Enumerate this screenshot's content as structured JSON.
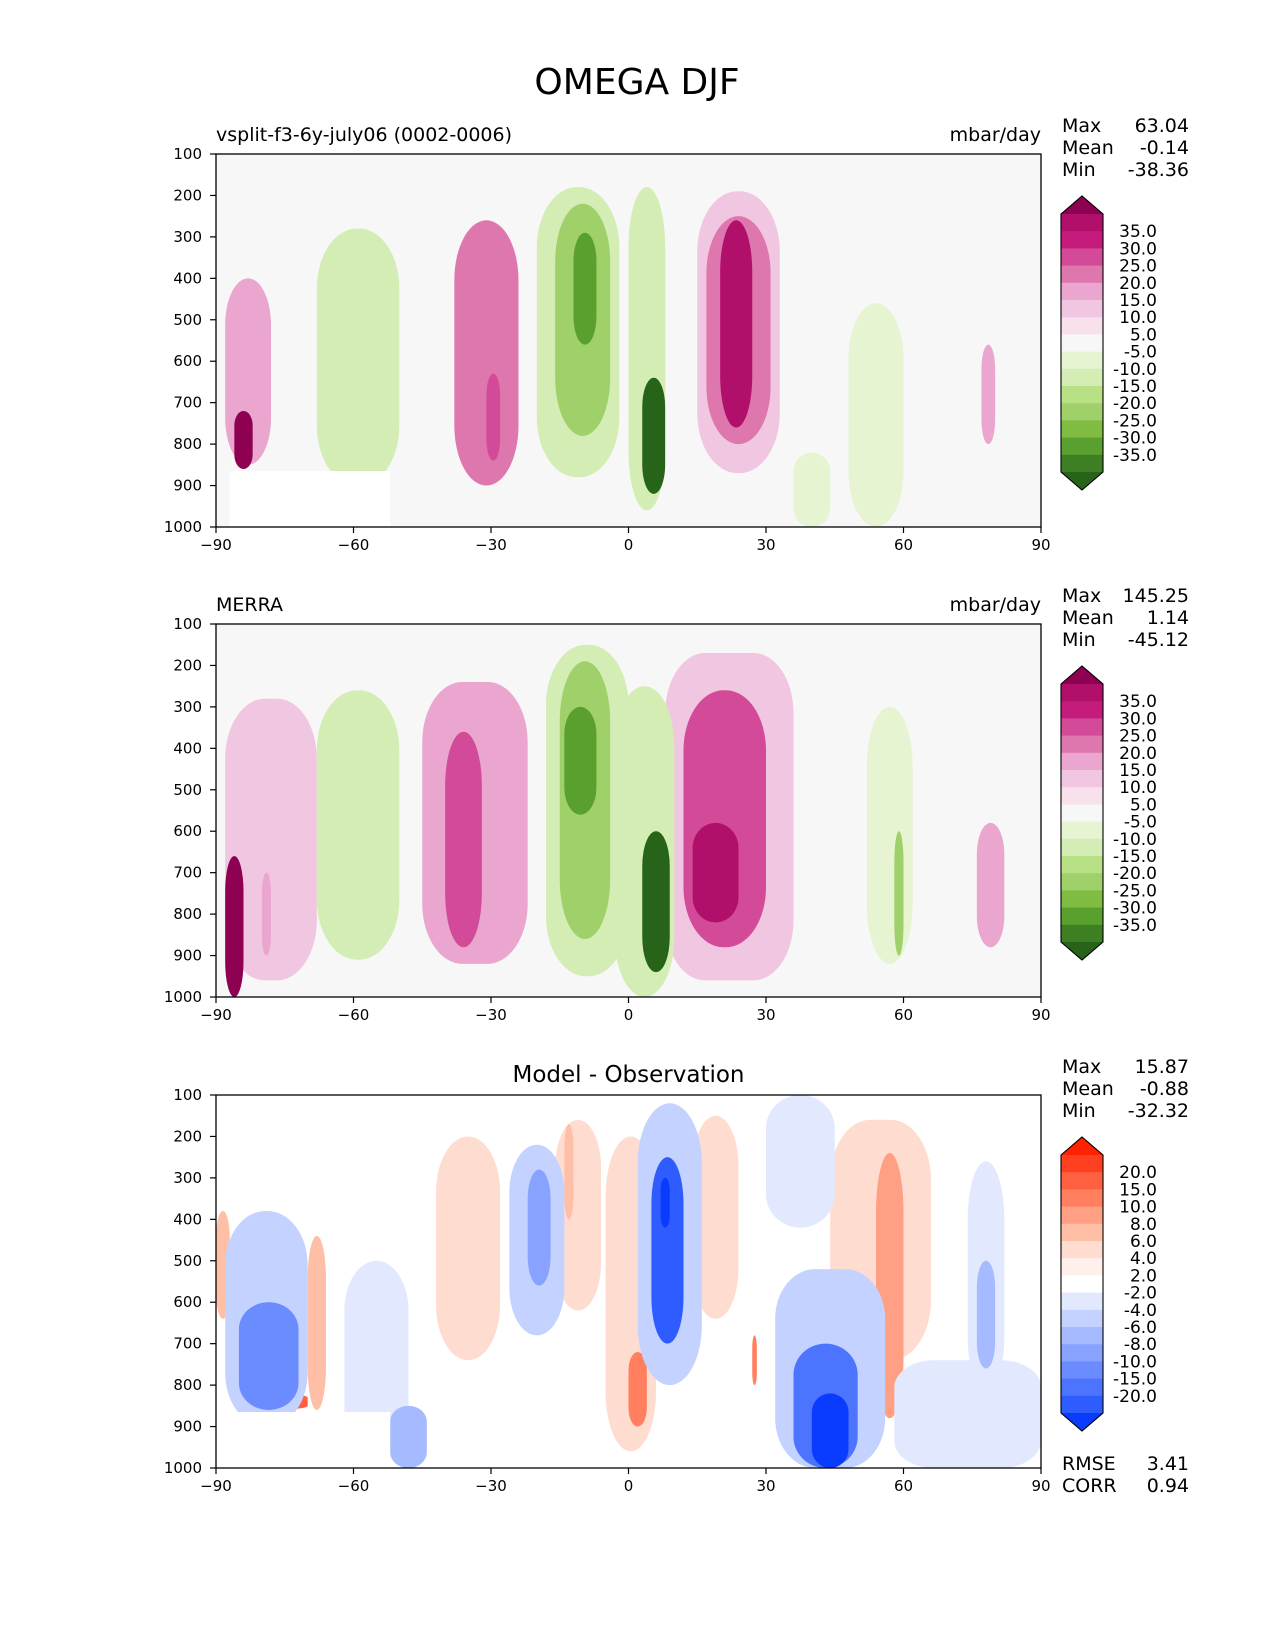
{
  "figure": {
    "title": "OMEGA DJF"
  },
  "chart_data": [
    {
      "type": "heatmap",
      "left_label": "vsplit-f3-6y-july06 (0002-0006)",
      "center_label": "",
      "units": "mbar/day",
      "x_ticks": [
        "−90",
        "−60",
        "−30",
        "0",
        "30",
        "60",
        "90"
      ],
      "y_ticks": [
        "100",
        "200",
        "300",
        "400",
        "500",
        "600",
        "700",
        "800",
        "900",
        "1000"
      ],
      "xlim": [
        -90,
        90
      ],
      "ylim": [
        1000,
        100
      ],
      "stats": [
        {
          "label": "Max",
          "value": "63.04"
        },
        {
          "label": "Mean",
          "value": "-0.14"
        },
        {
          "label": "Min",
          "value": "-38.36"
        }
      ],
      "extra_stats": [],
      "colorbar": {
        "labels": [
          "35.0",
          "30.0",
          "25.0",
          "20.0",
          "15.0",
          "10.0",
          "5.0",
          "-5.0",
          "-10.0",
          "-15.0",
          "-20.0",
          "-25.0",
          "-30.0",
          "-35.0"
        ],
        "colors": [
          "#8e0152",
          "#b0106a",
          "#c51b7d",
          "#d24a98",
          "#de77ae",
          "#eaa6cf",
          "#f1c6e1",
          "#f8e0ec",
          "#f7f7f7",
          "#e6f4d2",
          "#d3edb5",
          "#b8e186",
          "#9fd06a",
          "#7fbc41",
          "#5aa02e",
          "#3d7f22",
          "#276419"
        ]
      },
      "features": [
        {
          "kind": "pos",
          "level": 4,
          "lon": [
            -38,
            -24
          ],
          "p": [
            260,
            900
          ]
        },
        {
          "kind": "pos",
          "level": 5,
          "lon": [
            -31,
            -28
          ],
          "p": [
            630,
            840
          ]
        },
        {
          "kind": "pos",
          "level": 2,
          "lon": [
            15,
            33
          ],
          "p": [
            190,
            870
          ]
        },
        {
          "kind": "pos",
          "level": 4,
          "lon": [
            17,
            31
          ],
          "p": [
            250,
            800
          ]
        },
        {
          "kind": "pos",
          "level": 7,
          "lon": [
            20,
            27
          ],
          "p": [
            260,
            760
          ]
        },
        {
          "kind": "pos",
          "level": 3,
          "lon": [
            -88,
            -78
          ],
          "p": [
            400,
            850
          ]
        },
        {
          "kind": "pos",
          "level": 10,
          "lon": [
            -86,
            -82
          ],
          "p": [
            720,
            860
          ]
        },
        {
          "kind": "pos",
          "level": 3,
          "lon": [
            77,
            80
          ],
          "p": [
            560,
            800
          ]
        },
        {
          "kind": "neg",
          "level": 2,
          "lon": [
            -68,
            -50
          ],
          "p": [
            280,
            900
          ]
        },
        {
          "kind": "neg",
          "level": 2,
          "lon": [
            -20,
            -2
          ],
          "p": [
            180,
            880
          ]
        },
        {
          "kind": "neg",
          "level": 4,
          "lon": [
            -16,
            -4
          ],
          "p": [
            220,
            780
          ]
        },
        {
          "kind": "neg",
          "level": 6,
          "lon": [
            -12,
            -7
          ],
          "p": [
            290,
            560
          ]
        },
        {
          "kind": "neg",
          "level": 2,
          "lon": [
            0,
            8
          ],
          "p": [
            180,
            960
          ]
        },
        {
          "kind": "neg",
          "level": 8,
          "lon": [
            3,
            8
          ],
          "p": [
            640,
            920
          ]
        },
        {
          "kind": "neg",
          "level": 1,
          "lon": [
            48,
            60
          ],
          "p": [
            460,
            1000
          ]
        },
        {
          "kind": "neg",
          "level": 1,
          "lon": [
            36,
            44
          ],
          "p": [
            820,
            1000
          ]
        }
      ],
      "has_mask": true
    },
    {
      "type": "heatmap",
      "left_label": "MERRA",
      "center_label": "",
      "units": "mbar/day",
      "x_ticks": [
        "−90",
        "−60",
        "−30",
        "0",
        "30",
        "60",
        "90"
      ],
      "y_ticks": [
        "100",
        "200",
        "300",
        "400",
        "500",
        "600",
        "700",
        "800",
        "900",
        "1000"
      ],
      "xlim": [
        -90,
        90
      ],
      "ylim": [
        1000,
        100
      ],
      "stats": [
        {
          "label": "Max",
          "value": "145.25"
        },
        {
          "label": "Mean",
          "value": "1.14"
        },
        {
          "label": "Min",
          "value": "-45.12"
        }
      ],
      "extra_stats": [],
      "colorbar": {
        "labels": [
          "35.0",
          "30.0",
          "25.0",
          "20.0",
          "15.0",
          "10.0",
          "5.0",
          "-5.0",
          "-10.0",
          "-15.0",
          "-20.0",
          "-25.0",
          "-30.0",
          "-35.0"
        ],
        "colors": [
          "#8e0152",
          "#b0106a",
          "#c51b7d",
          "#d24a98",
          "#de77ae",
          "#eaa6cf",
          "#f1c6e1",
          "#f8e0ec",
          "#f7f7f7",
          "#e6f4d2",
          "#d3edb5",
          "#b8e186",
          "#9fd06a",
          "#7fbc41",
          "#5aa02e",
          "#3d7f22",
          "#276419"
        ]
      },
      "features": [
        {
          "kind": "pos",
          "level": 3,
          "lon": [
            -45,
            -22
          ],
          "p": [
            240,
            920
          ]
        },
        {
          "kind": "pos",
          "level": 5,
          "lon": [
            -40,
            -32
          ],
          "p": [
            360,
            880
          ]
        },
        {
          "kind": "pos",
          "level": 2,
          "lon": [
            8,
            36
          ],
          "p": [
            170,
            960
          ]
        },
        {
          "kind": "pos",
          "level": 5,
          "lon": [
            12,
            30
          ],
          "p": [
            260,
            880
          ]
        },
        {
          "kind": "pos",
          "level": 7,
          "lon": [
            14,
            24
          ],
          "p": [
            580,
            820
          ]
        },
        {
          "kind": "pos",
          "level": 2,
          "lon": [
            -88,
            -68
          ],
          "p": [
            280,
            960
          ]
        },
        {
          "kind": "pos",
          "level": 13,
          "lon": [
            -88,
            -84
          ],
          "p": [
            660,
            1000
          ]
        },
        {
          "kind": "pos",
          "level": 3,
          "lon": [
            -80,
            -78
          ],
          "p": [
            700,
            900
          ]
        },
        {
          "kind": "pos",
          "level": 3,
          "lon": [
            76,
            82
          ],
          "p": [
            580,
            880
          ]
        },
        {
          "kind": "neg",
          "level": 2,
          "lon": [
            -68,
            -50
          ],
          "p": [
            260,
            910
          ]
        },
        {
          "kind": "neg",
          "level": 2,
          "lon": [
            -18,
            0
          ],
          "p": [
            150,
            950
          ]
        },
        {
          "kind": "neg",
          "level": 4,
          "lon": [
            -15,
            -4
          ],
          "p": [
            190,
            860
          ]
        },
        {
          "kind": "neg",
          "level": 6,
          "lon": [
            -14,
            -7
          ],
          "p": [
            300,
            560
          ]
        },
        {
          "kind": "neg",
          "level": 2,
          "lon": [
            -3,
            10
          ],
          "p": [
            250,
            1000
          ]
        },
        {
          "kind": "neg",
          "level": 8,
          "lon": [
            3,
            9
          ],
          "p": [
            600,
            940
          ]
        },
        {
          "kind": "neg",
          "level": 1,
          "lon": [
            52,
            62
          ],
          "p": [
            300,
            920
          ]
        },
        {
          "kind": "neg",
          "level": 4,
          "lon": [
            58,
            60
          ],
          "p": [
            600,
            900
          ]
        }
      ],
      "has_mask": false
    },
    {
      "type": "heatmap",
      "left_label": "",
      "center_label": "Model - Observation",
      "units": "",
      "x_ticks": [
        "−90",
        "−60",
        "−30",
        "0",
        "30",
        "60",
        "90"
      ],
      "y_ticks": [
        "100",
        "200",
        "300",
        "400",
        "500",
        "600",
        "700",
        "800",
        "900",
        "1000"
      ],
      "xlim": [
        -90,
        90
      ],
      "ylim": [
        1000,
        100
      ],
      "stats": [
        {
          "label": "Max",
          "value": "15.87"
        },
        {
          "label": "Mean",
          "value": "-0.88"
        },
        {
          "label": "Min",
          "value": "-32.32"
        }
      ],
      "extra_stats": [
        {
          "label": "RMSE",
          "value": "3.41"
        },
        {
          "label": "CORR",
          "value": "0.94"
        }
      ],
      "colorbar": {
        "labels": [
          "20.0",
          "15.0",
          "10.0",
          "8.0",
          "6.0",
          "4.0",
          "2.0",
          "-2.0",
          "-4.0",
          "-6.0",
          "-8.0",
          "-10.0",
          "-15.0",
          "-20.0"
        ],
        "colors": [
          "#ff2200",
          "#ff4020",
          "#ff6040",
          "#ff7f5f",
          "#ff9f84",
          "#ffbfa6",
          "#ffdcd0",
          "#fff0ec",
          "#ffffff",
          "#e2e9ff",
          "#c4d2ff",
          "#a6bbff",
          "#88a3ff",
          "#6a8cff",
          "#4c74ff",
          "#2e5cff",
          "#0a3cff"
        ]
      },
      "features": [
        {
          "kind": "pos",
          "level": 2,
          "lon": [
            -42,
            -28
          ],
          "p": [
            200,
            740
          ]
        },
        {
          "kind": "pos",
          "level": 2,
          "lon": [
            -16,
            -6
          ],
          "p": [
            160,
            620
          ]
        },
        {
          "kind": "pos",
          "level": 3,
          "lon": [
            -14,
            -12
          ],
          "p": [
            170,
            400
          ]
        },
        {
          "kind": "pos",
          "level": 2,
          "lon": [
            -5,
            6
          ],
          "p": [
            200,
            960
          ]
        },
        {
          "kind": "pos",
          "level": 5,
          "lon": [
            0,
            4
          ],
          "p": [
            720,
            900
          ]
        },
        {
          "kind": "pos",
          "level": 2,
          "lon": [
            14,
            24
          ],
          "p": [
            150,
            640
          ]
        },
        {
          "kind": "pos",
          "level": 5,
          "lon": [
            27,
            28
          ],
          "p": [
            680,
            800
          ]
        },
        {
          "kind": "pos",
          "level": 2,
          "lon": [
            44,
            66
          ],
          "p": [
            160,
            740
          ]
        },
        {
          "kind": "pos",
          "level": 4,
          "lon": [
            54,
            60
          ],
          "p": [
            240,
            880
          ]
        },
        {
          "kind": "pos",
          "level": 3,
          "lon": [
            -90,
            -87
          ],
          "p": [
            380,
            640
          ]
        },
        {
          "kind": "pos",
          "level": 3,
          "lon": [
            -70,
            -66
          ],
          "p": [
            440,
            860
          ]
        },
        {
          "kind": "pos",
          "level": 6,
          "lon": [
            -85,
            -70
          ],
          "p": [
            820,
            860
          ]
        },
        {
          "kind": "neg",
          "level": 2,
          "lon": [
            -26,
            -14
          ],
          "p": [
            220,
            680
          ]
        },
        {
          "kind": "neg",
          "level": 4,
          "lon": [
            -22,
            -17
          ],
          "p": [
            280,
            560
          ]
        },
        {
          "kind": "neg",
          "level": 2,
          "lon": [
            2,
            16
          ],
          "p": [
            120,
            800
          ]
        },
        {
          "kind": "neg",
          "level": 7,
          "lon": [
            5,
            12
          ],
          "p": [
            250,
            700
          ]
        },
        {
          "kind": "neg",
          "level": 10,
          "lon": [
            7,
            9
          ],
          "p": [
            300,
            420
          ]
        },
        {
          "kind": "neg",
          "level": 1,
          "lon": [
            30,
            45
          ],
          "p": [
            100,
            420
          ]
        },
        {
          "kind": "neg",
          "level": 2,
          "lon": [
            -88,
            -70
          ],
          "p": [
            380,
            900
          ]
        },
        {
          "kind": "neg",
          "level": 5,
          "lon": [
            -85,
            -72
          ],
          "p": [
            600,
            860
          ]
        },
        {
          "kind": "neg",
          "level": 1,
          "lon": [
            -62,
            -48
          ],
          "p": [
            500,
            980
          ]
        },
        {
          "kind": "neg",
          "level": 3,
          "lon": [
            -52,
            -44
          ],
          "p": [
            850,
            1000
          ]
        },
        {
          "kind": "neg",
          "level": 2,
          "lon": [
            32,
            56
          ],
          "p": [
            520,
            1000
          ]
        },
        {
          "kind": "neg",
          "level": 6,
          "lon": [
            36,
            50
          ],
          "p": [
            700,
            1000
          ]
        },
        {
          "kind": "neg",
          "level": 8,
          "lon": [
            40,
            48
          ],
          "p": [
            820,
            1000
          ]
        },
        {
          "kind": "neg",
          "level": 1,
          "lon": [
            58,
            90
          ],
          "p": [
            740,
            1000
          ]
        },
        {
          "kind": "neg",
          "level": 1,
          "lon": [
            74,
            82
          ],
          "p": [
            260,
            820
          ]
        },
        {
          "kind": "neg",
          "level": 3,
          "lon": [
            76,
            80
          ],
          "p": [
            500,
            760
          ]
        }
      ],
      "has_mask": true
    }
  ]
}
